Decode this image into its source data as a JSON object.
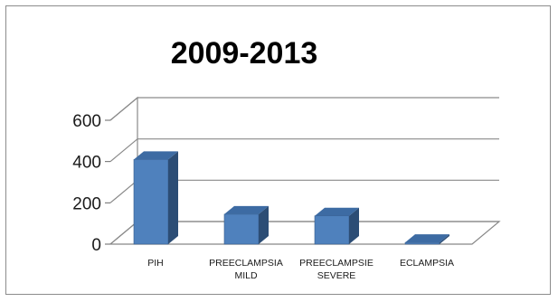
{
  "chart_data": {
    "type": "bar",
    "title": "2009-2013",
    "categories": [
      [
        "PIH"
      ],
      [
        "PREECLAMPSIA",
        "MILD"
      ],
      [
        "PREECLAMPSIE",
        "SEVERE"
      ],
      [
        "ECLAMPSIA"
      ]
    ],
    "values": [
      410,
      145,
      137,
      8
    ],
    "ylim": [
      0,
      600
    ],
    "yticks": [
      0,
      200,
      400,
      600
    ],
    "grid": true,
    "three_d": true,
    "bar_color": "#4f81bd",
    "bar_side_color": "#2c4d75",
    "bar_top_color": "#3d6ba3"
  }
}
